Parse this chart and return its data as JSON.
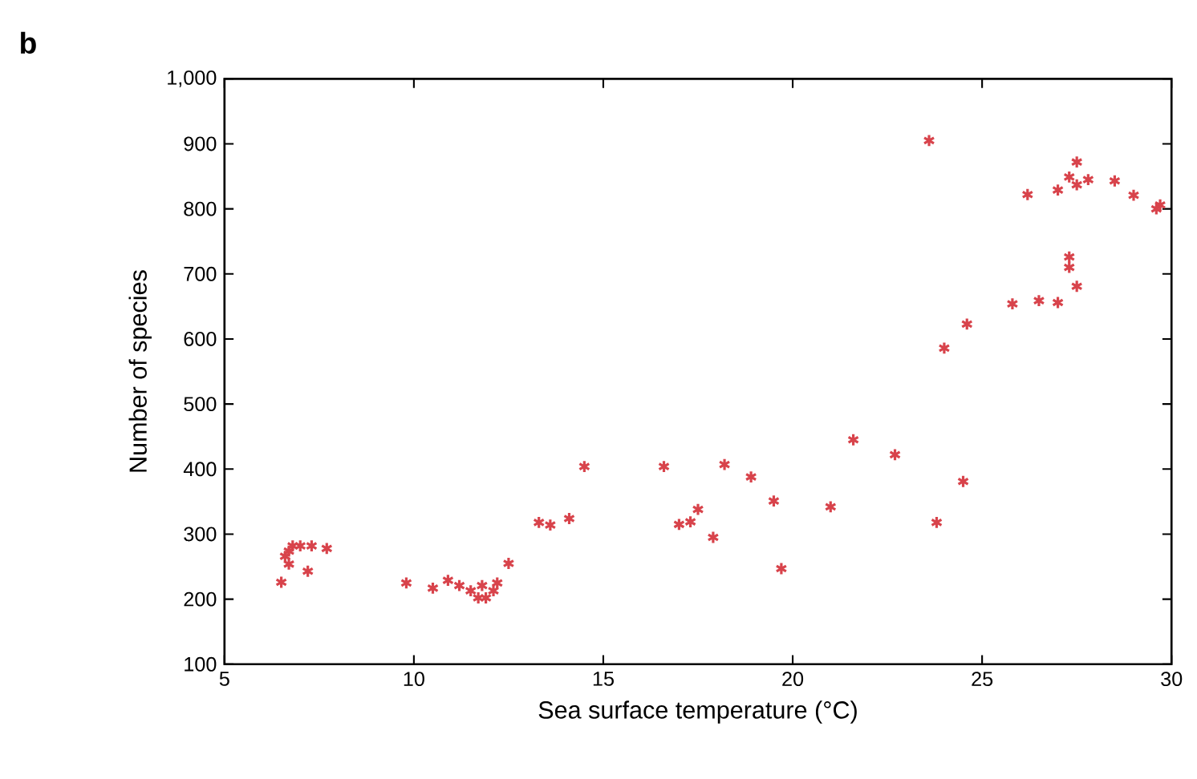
{
  "chart_data": {
    "type": "scatter",
    "xlabel": "Sea surface temperature (°C)",
    "ylabel": "Number of species",
    "annotations": [
      "b"
    ],
    "xlim": [
      5,
      30
    ],
    "xticks": [
      5,
      10,
      15,
      20,
      25,
      30
    ],
    "ylim": [
      100,
      1000
    ],
    "yticks": [
      100,
      200,
      300,
      400,
      500,
      600,
      700,
      800,
      900,
      {
        "value": 1000,
        "label": "1,000"
      }
    ],
    "grid": false,
    "marker": "cross",
    "series": [
      {
        "color": "#d8434b",
        "x": [
          6.5,
          6.6,
          6.7,
          6.8,
          7.0,
          6.7,
          7.2,
          7.3,
          7.7,
          9.8,
          10.5,
          10.9,
          11.2,
          11.5,
          11.8,
          11.9,
          12.1,
          12.2,
          11.7,
          12.5,
          13.3,
          13.6,
          14.1,
          14.5,
          16.6,
          17.0,
          17.3,
          17.5,
          17.9,
          18.2,
          18.9,
          19.5,
          19.7,
          21.0,
          21.6,
          22.7,
          23.6,
          23.8,
          24.5,
          24.0,
          24.6,
          25.8,
          26.5,
          27.0,
          27.5,
          27.3,
          27.3,
          26.2,
          27.0,
          27.3,
          27.5,
          27.5,
          27.8,
          28.5,
          29.0,
          29.6,
          29.7
        ],
        "values": [
          226,
          266,
          274,
          282,
          282,
          254,
          243,
          282,
          278,
          225,
          217,
          229,
          221,
          213,
          221,
          202,
          213,
          225,
          202,
          255,
          318,
          314,
          324,
          404,
          404,
          315,
          319,
          338,
          295,
          407,
          388,
          351,
          247,
          342,
          445,
          422,
          905,
          318,
          381,
          586,
          623,
          654,
          659,
          656,
          681,
          710,
          726,
          822,
          829,
          849,
          872,
          837,
          845,
          843,
          821,
          800,
          806
        ]
      }
    ]
  }
}
